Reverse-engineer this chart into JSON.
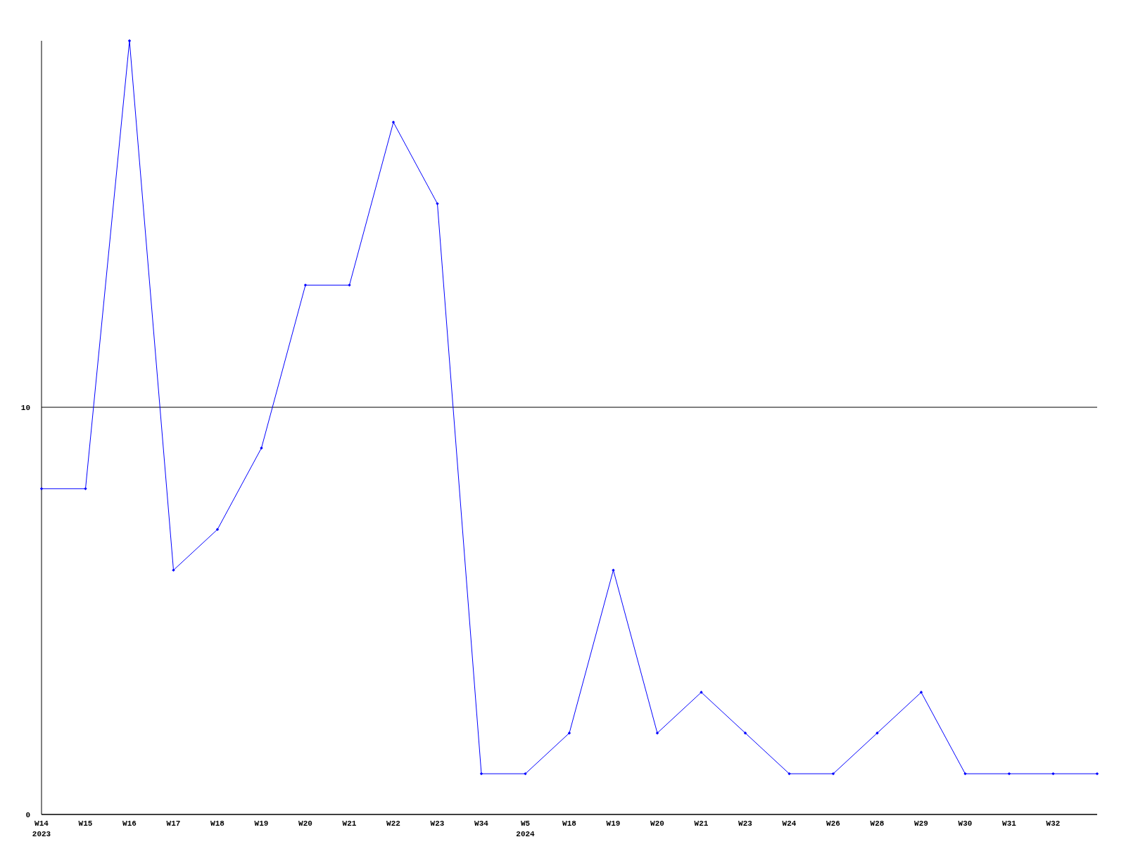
{
  "chart_data": {
    "type": "line",
    "categories": [
      "W14\n2023",
      "W15",
      "W16",
      "W17",
      "W18",
      "W19",
      "W20",
      "W21",
      "W22",
      "W23",
      "W34",
      "W5\n2024",
      "W18",
      "W19",
      "W20",
      "W21",
      "W23",
      "W24",
      "W26",
      "W28",
      "W29",
      "W30",
      "W31",
      "W32",
      null
    ],
    "series": [
      {
        "color": "#0000ff",
        "values": [
          8,
          8,
          19,
          6,
          7,
          9,
          13,
          13,
          17,
          15,
          1,
          1,
          2,
          6,
          2,
          3,
          2,
          1,
          1,
          2,
          3,
          1,
          1,
          1,
          1
        ]
      }
    ],
    "ylim": [
      0,
      19
    ],
    "yticks": [
      0,
      10
    ],
    "grid": "y",
    "marker": "diamond"
  }
}
